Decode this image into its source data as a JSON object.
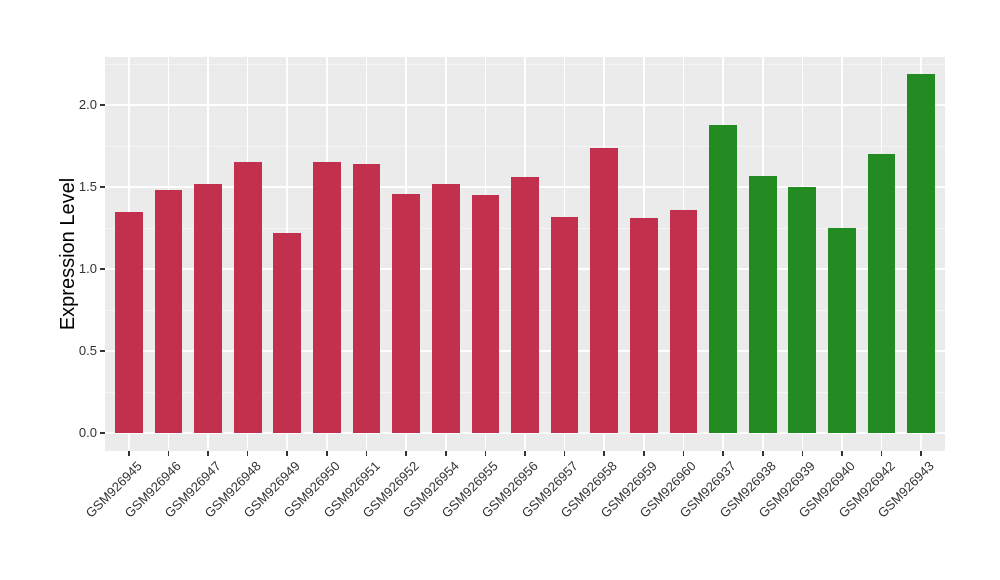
{
  "figure": {
    "background": "#FFFFFF"
  },
  "chart_data": {
    "type": "bar",
    "title": "",
    "xlabel": "",
    "ylabel": "Expression Level",
    "categories": [
      "GSM926945",
      "GSM926946",
      "GSM926947",
      "GSM926948",
      "GSM926949",
      "GSM926950",
      "GSM926951",
      "GSM926952",
      "GSM926954",
      "GSM926955",
      "GSM926956",
      "GSM926957",
      "GSM926958",
      "GSM926959",
      "GSM926960",
      "GSM926937",
      "GSM926938",
      "GSM926939",
      "GSM926940",
      "GSM926942",
      "GSM926943"
    ],
    "values": [
      1.35,
      1.48,
      1.52,
      1.65,
      1.22,
      1.65,
      1.64,
      1.46,
      1.52,
      1.45,
      1.56,
      1.32,
      1.74,
      1.31,
      1.36,
      1.88,
      1.57,
      1.5,
      1.25,
      1.7,
      2.19
    ],
    "bar_groups": [
      "red",
      "red",
      "red",
      "red",
      "red",
      "red",
      "red",
      "red",
      "red",
      "red",
      "red",
      "red",
      "red",
      "red",
      "red",
      "green",
      "green",
      "green",
      "green",
      "green",
      "green"
    ],
    "group_colors": {
      "red": "#C3304E",
      "green": "#228B22"
    },
    "yticks": [
      0.0,
      0.5,
      1.0,
      1.5,
      2.0
    ],
    "ytick_labels": [
      "0.0",
      "0.5",
      "1.0",
      "1.5",
      "2.0"
    ],
    "yminor": [
      0.25,
      0.75,
      1.25,
      1.75,
      2.25
    ],
    "ylim": [
      -0.11,
      2.29
    ],
    "bar_width_fraction": 0.7,
    "x_label_rotation_deg": 45,
    "grid": "horizontal major+minor, vertical major at category centers",
    "legend_position": "none",
    "panel_background": "#EBEBEB",
    "gridline_color": "#FFFFFF",
    "tick_color": "#333333",
    "tick_label_color": "#333333",
    "axis_title_color": "#000000"
  }
}
